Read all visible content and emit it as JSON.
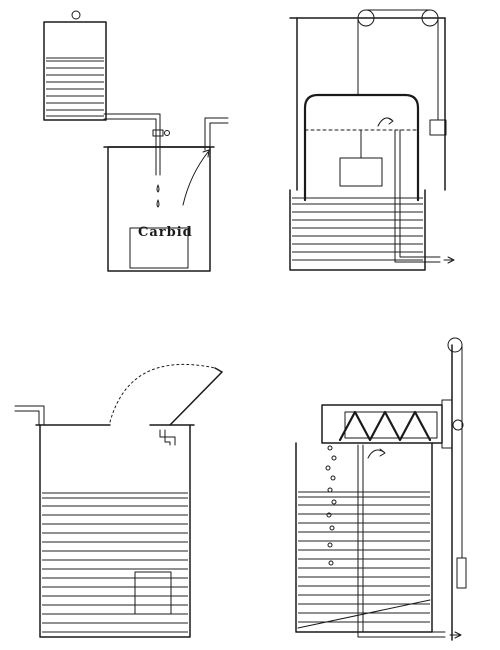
{
  "figure": {
    "panels": [
      {
        "id": "drip-feed",
        "label": "Carbid"
      },
      {
        "id": "bell-gasholder"
      },
      {
        "id": "carbide-to-water"
      },
      {
        "id": "screw-feed"
      }
    ]
  },
  "colors": {
    "ink": "#1a1a1a",
    "background": "#ffffff"
  }
}
